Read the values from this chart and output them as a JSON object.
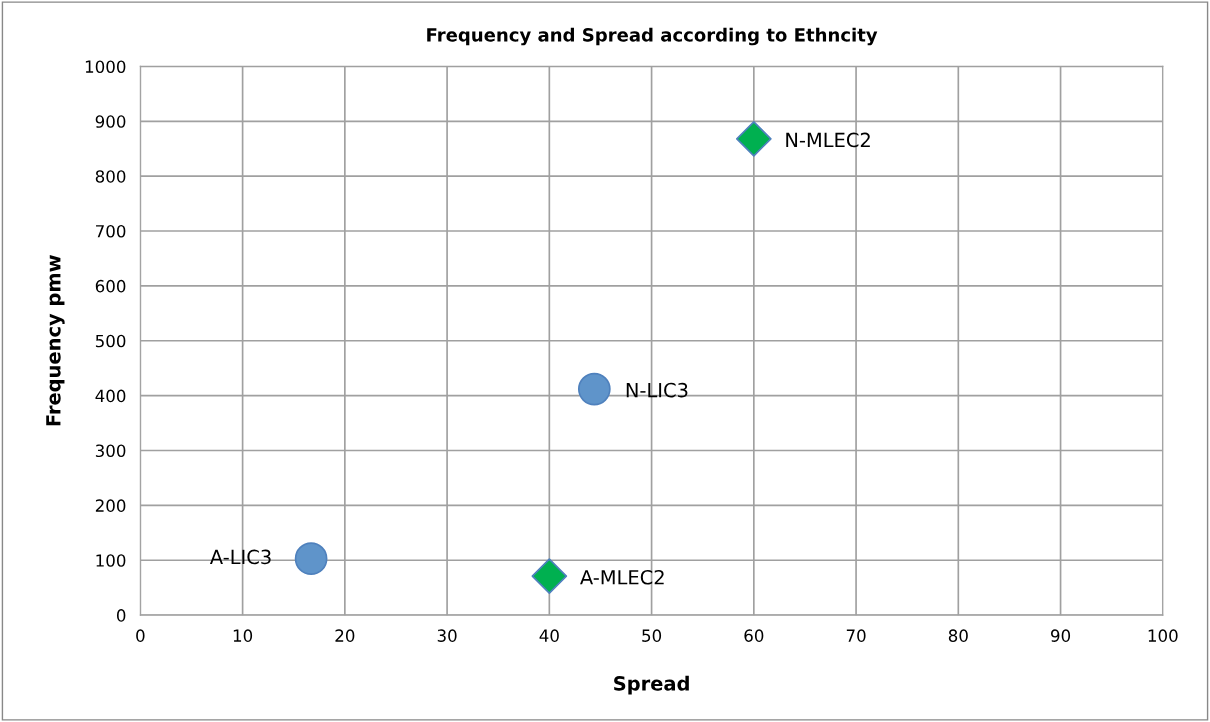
{
  "chart_data": {
    "type": "scatter",
    "title": "Frequency and Spread according to Ethncity",
    "xlabel": "Spread",
    "ylabel": "Frequency pmw",
    "series": [
      {
        "color": "#5f94ca",
        "marker": "circle",
        "x": [
          16.7,
          44.4
        ],
        "values": [
          103,
          412
        ]
      },
      {
        "color": "#00b050",
        "marker": "diamond",
        "x": [
          40,
          60
        ],
        "values": [
          71,
          868
        ]
      }
    ],
    "annotations": [
      {
        "text": "A-LIC3",
        "x": 16.7,
        "y": 103
      },
      {
        "text": "N-LIC3",
        "x": 44.4,
        "y": 412
      },
      {
        "text": "A-MLEC2",
        "x": 40,
        "y": 71
      },
      {
        "text": "N-MLEC2",
        "x": 60,
        "y": 868
      }
    ],
    "xlim": [
      0,
      100
    ],
    "xticks": [
      0,
      10,
      20,
      30,
      40,
      50,
      60,
      70,
      80,
      90,
      100
    ],
    "ylim": [
      0,
      1000
    ],
    "yticks": [
      0,
      100,
      200,
      300,
      400,
      500,
      600,
      700,
      800,
      900,
      1000
    ],
    "grid": true
  }
}
